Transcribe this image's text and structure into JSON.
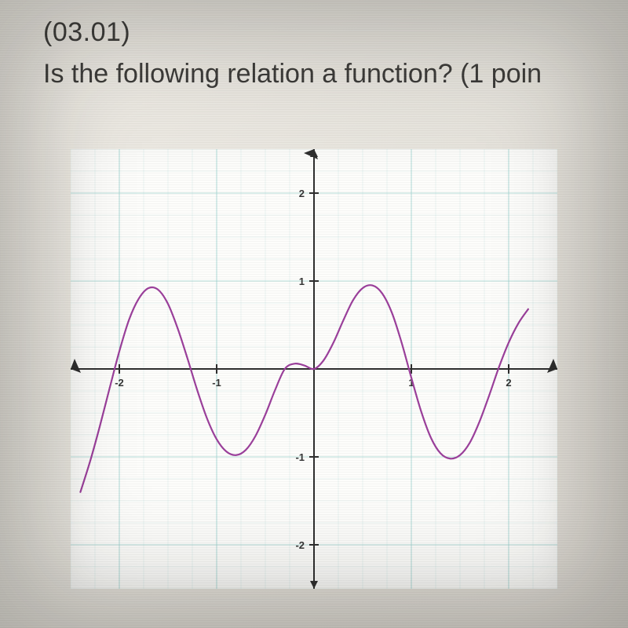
{
  "question": {
    "number_label": "(03.01)",
    "text": "Is the following relation a function? (1 poin"
  },
  "chart": {
    "type": "line",
    "background_color": "#fdfdfb",
    "grid_color": "#9fd3cf",
    "grid_minor_opacity": 0.35,
    "axis_color": "#2c2c2c",
    "curve_color": "#9a3d9a",
    "curve_width": 2.2,
    "xlim": [
      -2.5,
      2.5
    ],
    "ylim": [
      -2.5,
      2.5
    ],
    "xticks": [
      -2,
      -1,
      1,
      2
    ],
    "yticks": [
      -2,
      -1,
      1,
      2
    ],
    "xtick_labels": [
      "-2",
      "-1",
      "1",
      "2"
    ],
    "ytick_labels": [
      "-2",
      "-1",
      "1",
      "2"
    ],
    "tick_font_size": 13,
    "tick_color": "#333333",
    "curve_points": [
      [
        -2.4,
        -1.4
      ],
      [
        -2.3,
        -1.05
      ],
      [
        -2.2,
        -0.65
      ],
      [
        -2.1,
        -0.22
      ],
      [
        -2.0,
        0.2
      ],
      [
        -1.9,
        0.56
      ],
      [
        -1.8,
        0.8
      ],
      [
        -1.7,
        0.92
      ],
      [
        -1.6,
        0.9
      ],
      [
        -1.5,
        0.74
      ],
      [
        -1.4,
        0.46
      ],
      [
        -1.3,
        0.12
      ],
      [
        -1.2,
        -0.24
      ],
      [
        -1.1,
        -0.56
      ],
      [
        -1.0,
        -0.8
      ],
      [
        -0.9,
        -0.94
      ],
      [
        -0.8,
        -0.98
      ],
      [
        -0.7,
        -0.92
      ],
      [
        -0.6,
        -0.76
      ],
      [
        -0.5,
        -0.52
      ],
      [
        -0.4,
        -0.24
      ],
      [
        -0.3,
        0.0
      ],
      [
        -0.2,
        0.06
      ],
      [
        -0.1,
        0.04
      ],
      [
        0.0,
        0.0
      ],
      [
        0.1,
        0.1
      ],
      [
        0.2,
        0.3
      ],
      [
        0.3,
        0.55
      ],
      [
        0.4,
        0.78
      ],
      [
        0.5,
        0.92
      ],
      [
        0.6,
        0.95
      ],
      [
        0.7,
        0.86
      ],
      [
        0.8,
        0.64
      ],
      [
        0.9,
        0.3
      ],
      [
        1.0,
        -0.1
      ],
      [
        1.1,
        -0.48
      ],
      [
        1.2,
        -0.78
      ],
      [
        1.3,
        -0.96
      ],
      [
        1.4,
        -1.02
      ],
      [
        1.5,
        -0.98
      ],
      [
        1.6,
        -0.84
      ],
      [
        1.7,
        -0.6
      ],
      [
        1.8,
        -0.3
      ],
      [
        1.9,
        0.02
      ],
      [
        2.0,
        0.3
      ],
      [
        2.1,
        0.52
      ],
      [
        2.2,
        0.68
      ]
    ]
  }
}
